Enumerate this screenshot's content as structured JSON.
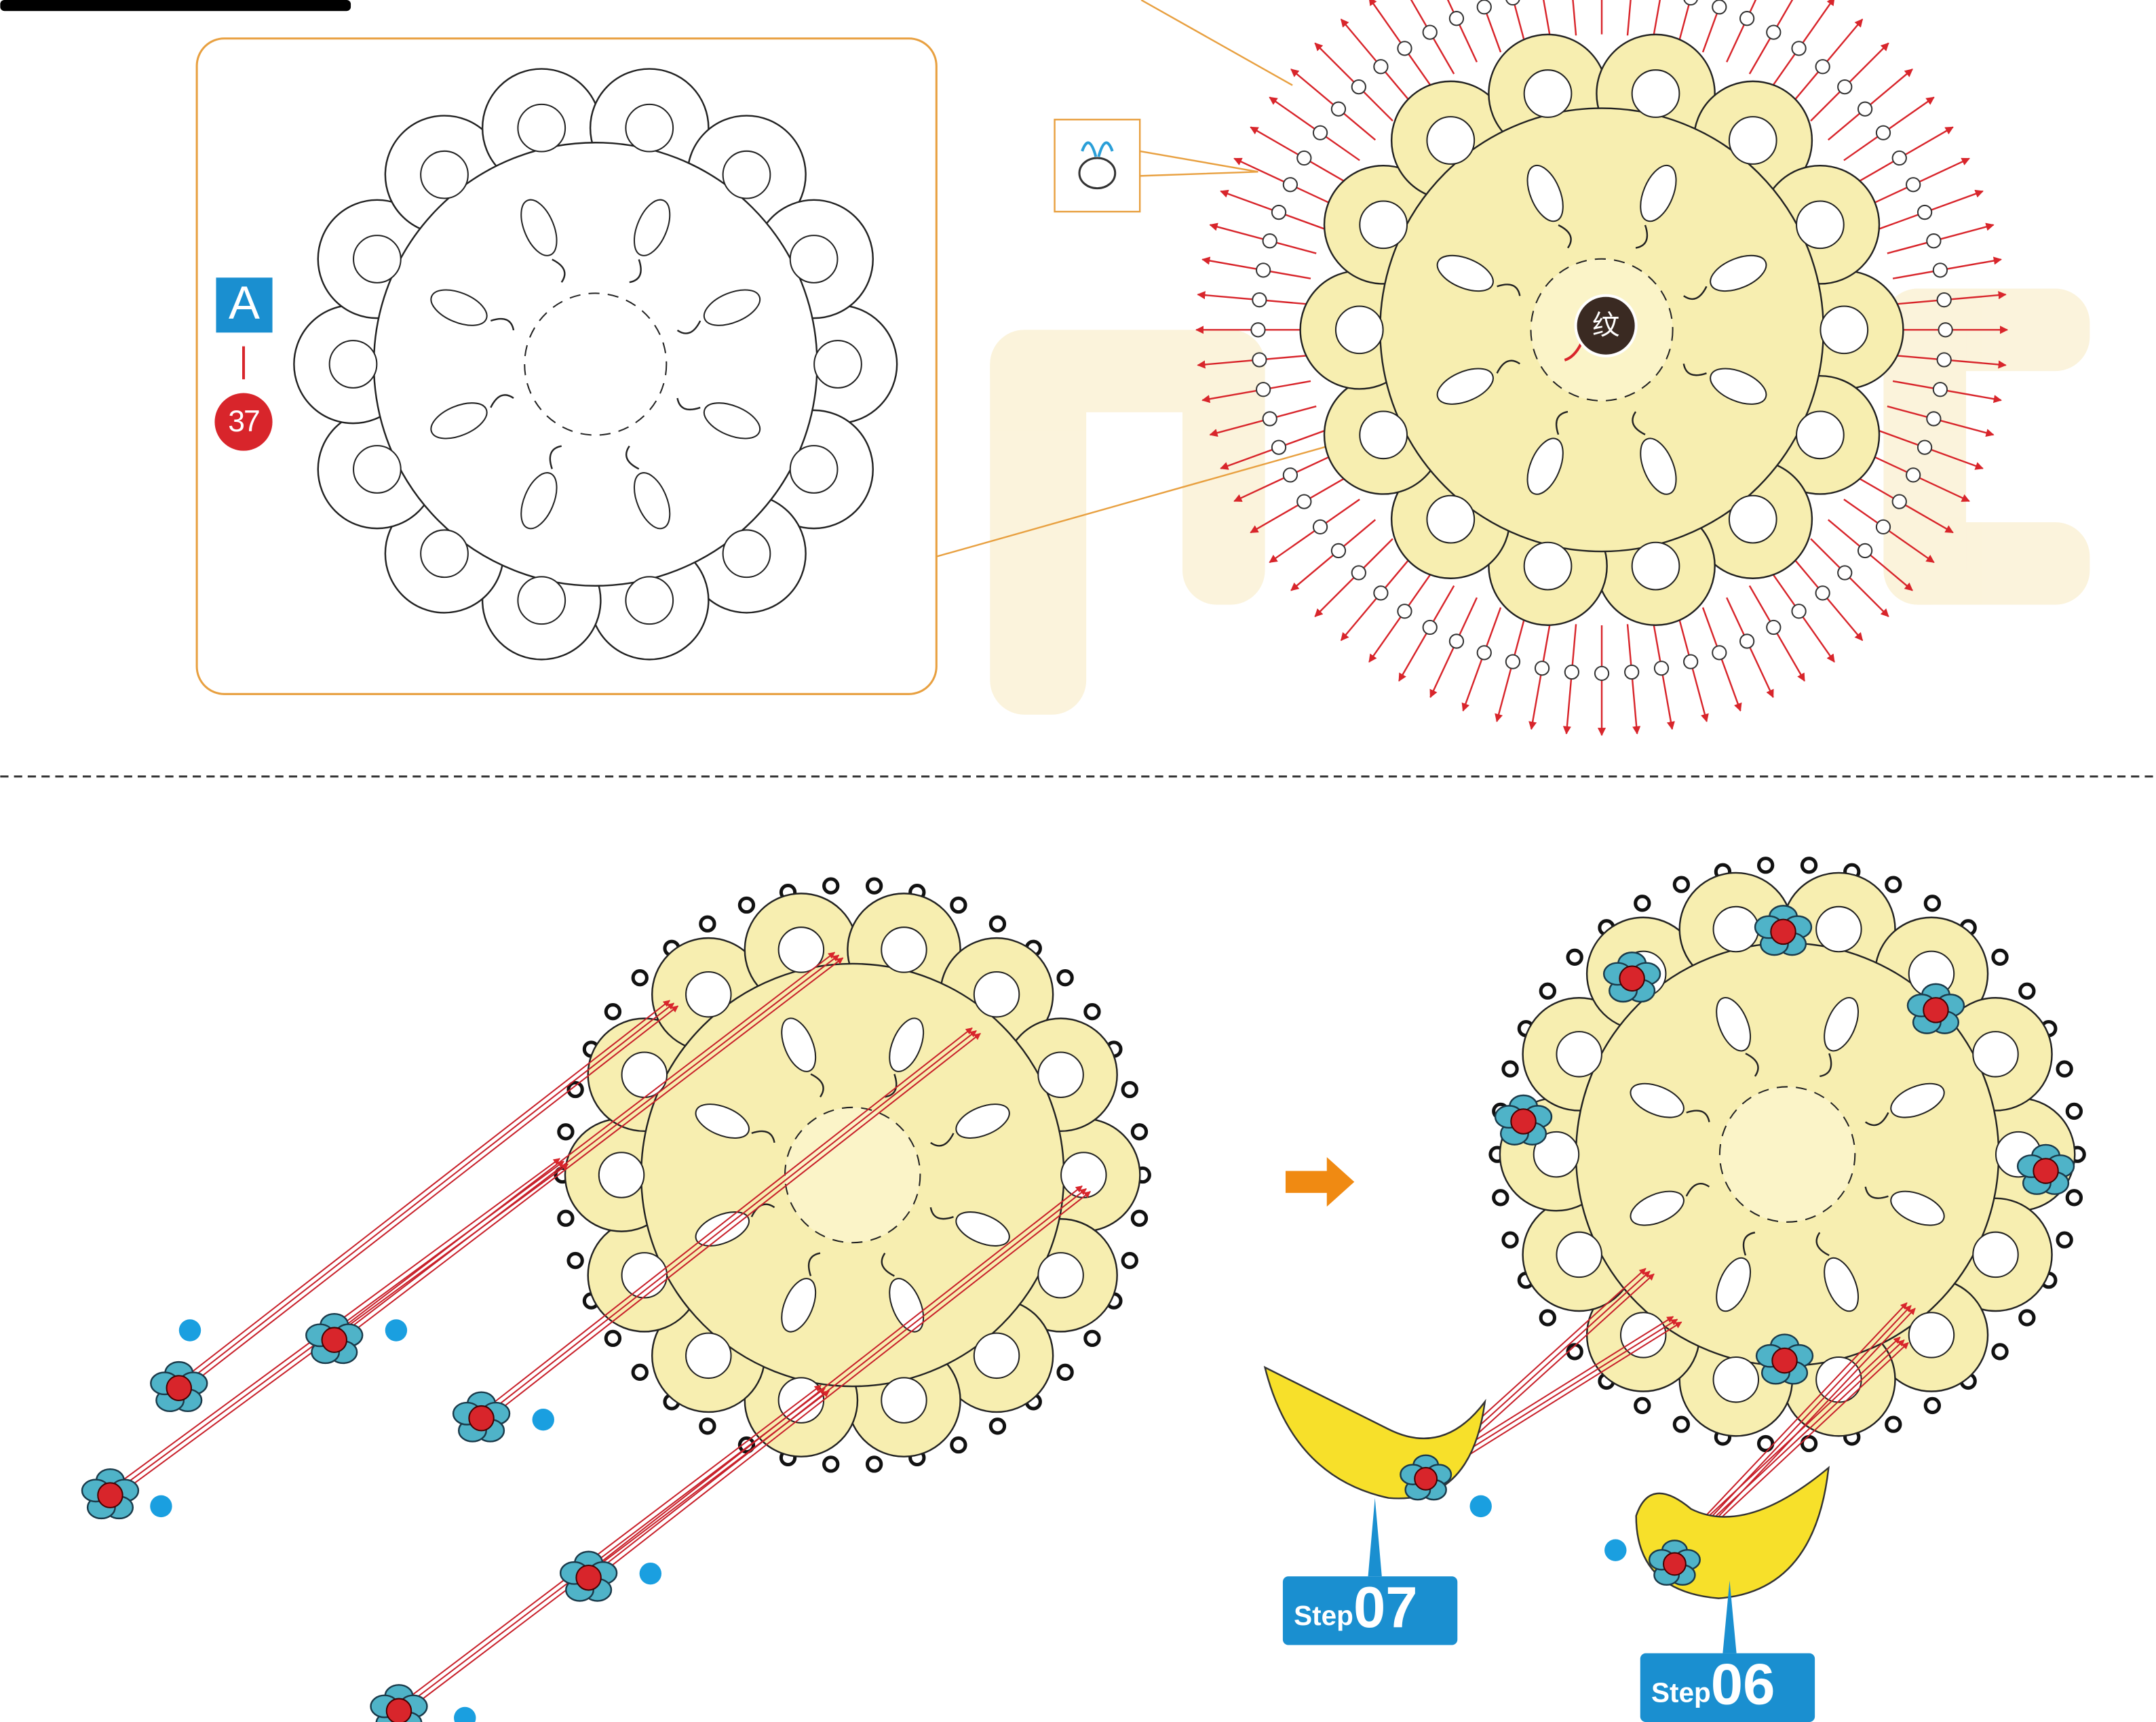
{
  "part_label": {
    "letter": "A",
    "number": "37"
  },
  "callout": "纹",
  "steps": [
    {
      "word": "Step",
      "number": "07"
    },
    {
      "word": "Step",
      "number": "06"
    }
  ]
}
